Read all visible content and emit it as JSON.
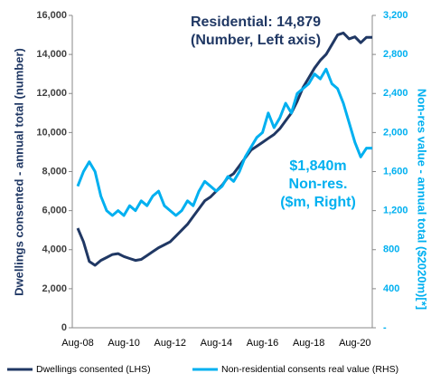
{
  "chart_data": {
    "type": "line",
    "annotations": [
      "Residential: 14,879",
      "(Number, Left axis)",
      "$1,840m",
      "Non-res.",
      "($m, Right)"
    ],
    "y_label": "Dwellings consented - annual total (number)",
    "y2_label": "Non-res value - annual total ($2020m)[*]",
    "categories": [
      "Aug-08",
      null,
      null,
      null,
      null,
      null,
      null,
      null,
      "Aug-10",
      null,
      null,
      null,
      null,
      null,
      null,
      null,
      "Aug-12",
      null,
      null,
      null,
      null,
      null,
      null,
      null,
      "Aug-14",
      null,
      null,
      null,
      null,
      null,
      null,
      null,
      "Aug-16",
      null,
      null,
      null,
      null,
      null,
      null,
      null,
      "Aug-18",
      null,
      null,
      null,
      null,
      null,
      null,
      null,
      "Aug-20",
      null,
      null,
      null
    ],
    "series": [
      {
        "name": "Dwellings consented (LHS)",
        "color": "#203864",
        "axis": "y",
        "values": [
          5100,
          4400,
          3400,
          3200,
          3450,
          3600,
          3750,
          3800,
          3650,
          3550,
          3450,
          3500,
          3700,
          3900,
          4100,
          4250,
          4400,
          4700,
          5000,
          5300,
          5700,
          6100,
          6500,
          6700,
          7000,
          7300,
          7700,
          7900,
          8300,
          8700,
          9100,
          9300,
          9500,
          9700,
          9900,
          10200,
          10600,
          11000,
          11600,
          12300,
          12800,
          13300,
          13700,
          14000,
          14500,
          15000,
          15100,
          14800,
          14900,
          14600,
          14879,
          14879
        ]
      },
      {
        "name": "Non-residential consents real value (RHS)",
        "color": "#00b0f0",
        "axis": "y2",
        "values": [
          1450,
          1600,
          1700,
          1600,
          1350,
          1200,
          1150,
          1200,
          1150,
          1250,
          1200,
          1300,
          1250,
          1350,
          1400,
          1250,
          1200,
          1150,
          1200,
          1300,
          1250,
          1400,
          1500,
          1450,
          1400,
          1450,
          1550,
          1500,
          1600,
          1750,
          1850,
          1950,
          2000,
          2200,
          2050,
          2150,
          2300,
          2200,
          2400,
          2450,
          2500,
          2600,
          2550,
          2650,
          2500,
          2450,
          2300,
          2100,
          1900,
          1750,
          1840,
          1840
        ]
      }
    ],
    "ylim": [
      0,
      16000
    ],
    "yticks": [
      0,
      {
        "value": 2000,
        "label": "2,000"
      },
      {
        "value": 4000,
        "label": "4,000"
      },
      {
        "value": 6000,
        "label": "6,000"
      },
      {
        "value": 8000,
        "label": "8,000"
      },
      {
        "value": 10000,
        "label": "10,000"
      },
      {
        "value": 12000,
        "label": "12,000"
      },
      {
        "value": 14000,
        "label": "14,000"
      },
      {
        "value": 16000,
        "label": "16,000"
      }
    ],
    "y2lim": [
      0,
      3200
    ],
    "y2ticks": [
      {
        "value": 0,
        "label": "-"
      },
      400,
      800,
      {
        "value": 1200,
        "label": "1,200"
      },
      {
        "value": 1600,
        "label": "1,600"
      },
      {
        "value": 2000,
        "label": "2,000"
      },
      {
        "value": 2400,
        "label": "2,400"
      },
      {
        "value": 2800,
        "label": "2,800"
      },
      {
        "value": 3200,
        "label": "3,200"
      }
    ],
    "legend": "bottom"
  }
}
